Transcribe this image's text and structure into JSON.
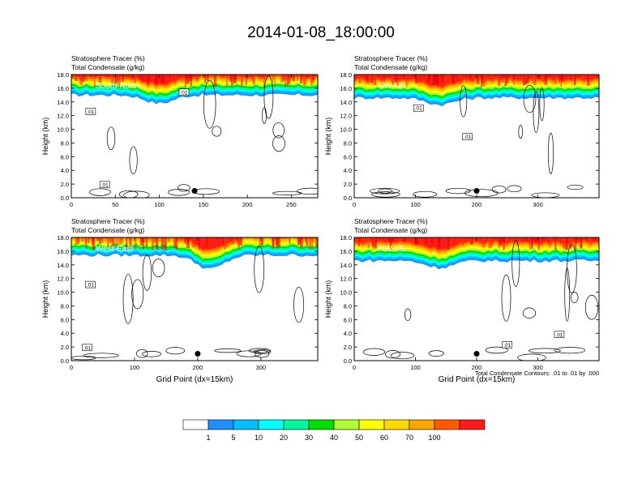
{
  "title": "2014-01-08_18:00:00",
  "colorbar": {
    "labels": [
      "1",
      "5",
      "10",
      "20",
      "30",
      "40",
      "50",
      "60",
      "70",
      "100"
    ],
    "colors": [
      "#ffffff",
      "#1e90ff",
      "#00bfff",
      "#00ffff",
      "#00fa9a",
      "#00e000",
      "#adff2f",
      "#ffff00",
      "#ffd700",
      "#ffa500",
      "#ff5a00",
      "#ff1a1a"
    ]
  },
  "contour_note": "Total Condensate Contours: .01 to .01 by .000",
  "chart_data": [
    {
      "type": "contour",
      "panel_label": "South-North",
      "title_line1": "Stratosphere Tracer   (%)",
      "title_line2": "Total Condensate   (g/kg)",
      "ylabel": "Height (km)",
      "xlabel": "",
      "xlim": [
        0,
        280
      ],
      "ylim": [
        0,
        18
      ],
      "xticks": [
        0,
        50,
        100,
        150,
        200,
        250
      ],
      "yticks": [
        "0.0",
        "2.0",
        "4.0",
        "6.0",
        "8.0",
        "10.0",
        "12.0",
        "14.0",
        "16.0",
        "18.0"
      ],
      "tracer_base_km": 15.0,
      "tracer_dip": {
        "x": 100,
        "depth_km": 1.2
      },
      "marker": {
        "x": 140,
        "y": 1.0
      },
      "contour_labels": [
        {
          "text": ".01",
          "x": 22,
          "y": 12.5
        },
        {
          "text": ".01",
          "x": 128,
          "y": 15.3
        },
        {
          "text": ".01",
          "x": 38,
          "y": 1.8
        }
      ]
    },
    {
      "type": "contour",
      "panel_label": "SW-NE",
      "title_line1": "Stratosphere Tracer   (%)",
      "title_line2": "Total Condensate   (g/kg)",
      "ylabel": "Height (km)",
      "xlabel": "",
      "xlim": [
        0,
        400
      ],
      "ylim": [
        0,
        18
      ],
      "xticks": [
        0,
        100,
        200,
        300
      ],
      "yticks": [
        "0.0",
        "2.0",
        "4.0",
        "6.0",
        "8.0",
        "10.0",
        "12.0",
        "14.0",
        "16.0",
        "18.0"
      ],
      "tracer_base_km": 14.6,
      "tracer_dip": {
        "x": 140,
        "depth_km": 1.0
      },
      "marker": {
        "x": 200,
        "y": 1.0
      },
      "contour_labels": [
        {
          "text": ".01",
          "x": 105,
          "y": 13.0
        },
        {
          "text": ".01",
          "x": 185,
          "y": 8.8
        }
      ]
    },
    {
      "type": "contour",
      "panel_label": "West-East",
      "title_line1": "Stratosphere Tracer   (%)",
      "title_line2": "Total Condensate   (g/kg)",
      "ylabel": "Height (km)",
      "xlabel": "Grid Point (dx=15km)",
      "xlim": [
        0,
        390
      ],
      "ylim": [
        0,
        18
      ],
      "xticks": [
        0,
        100,
        200,
        300
      ],
      "yticks": [
        "0.0",
        "2.0",
        "4.0",
        "6.0",
        "8.0",
        "10.0",
        "12.0",
        "14.0",
        "16.0",
        "18.0"
      ],
      "tracer_base_km": 15.4,
      "tracer_dip": {
        "x": 220,
        "depth_km": 2.0
      },
      "marker": {
        "x": 200,
        "y": 1.0
      },
      "contour_labels": [
        {
          "text": ".01",
          "x": 30,
          "y": 11.0
        },
        {
          "text": ".01",
          "x": 25,
          "y": 1.8
        }
      ]
    },
    {
      "type": "contour",
      "panel_label": "NW-SE",
      "title_line1": "Stratosphere Tracer   (%)",
      "title_line2": "Total Condensate   (g/kg)",
      "ylabel": "Height (km)",
      "xlabel": "Grid Point (dx=15km)",
      "xlim": [
        0,
        400
      ],
      "ylim": [
        0,
        18
      ],
      "xticks": [
        0,
        100,
        200,
        300
      ],
      "yticks": [
        "0.0",
        "2.0",
        "4.0",
        "6.0",
        "8.0",
        "10.0",
        "12.0",
        "14.0",
        "16.0",
        "18.0"
      ],
      "tracer_base_km": 14.6,
      "tracer_dip": {
        "x": 140,
        "depth_km": 1.0
      },
      "marker": {
        "x": 200,
        "y": 1.0
      },
      "contour_labels": [
        {
          "text": ".01",
          "x": 250,
          "y": 2.2
        },
        {
          "text": ".01",
          "x": 335,
          "y": 3.7
        }
      ]
    }
  ]
}
